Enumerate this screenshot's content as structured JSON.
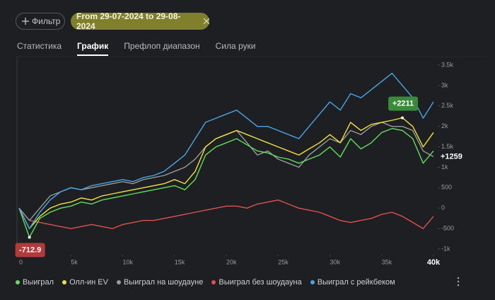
{
  "filter_button": "Фильтр",
  "date_range": "From 29-07-2024 to 29-08-2024",
  "tabs": [
    "Статистика",
    "График",
    "Префлоп диапазон",
    "Сила руки"
  ],
  "active_tab": 1,
  "chart_data": {
    "type": "line",
    "x": [
      0,
      1000,
      2000,
      3000,
      4000,
      5000,
      6000,
      7000,
      8000,
      9000,
      10000,
      11000,
      12000,
      13000,
      14000,
      15000,
      16000,
      17000,
      18000,
      19000,
      20000,
      21000,
      22000,
      23000,
      24000,
      25000,
      26000,
      27000,
      28000,
      29000,
      30000,
      31000,
      32000,
      33000,
      34000,
      35000,
      36000,
      37000,
      38000,
      39000,
      40000
    ],
    "series": [
      {
        "name": "Выиграл",
        "color": "#5fe05a",
        "values": [
          0,
          -712.9,
          -250,
          -100,
          0,
          50,
          150,
          100,
          200,
          250,
          300,
          350,
          400,
          450,
          500,
          550,
          450,
          700,
          1300,
          1500,
          1600,
          1700,
          1550,
          1400,
          1350,
          1250,
          1200,
          1100,
          1200,
          1300,
          1500,
          1250,
          1700,
          1450,
          1600,
          1850,
          1950,
          1900,
          1700,
          1100,
          1400
        ]
      },
      {
        "name": "Олл-ин EV",
        "color": "#f0e23c",
        "values": [
          0,
          -500,
          -200,
          0,
          100,
          150,
          250,
          200,
          300,
          350,
          400,
          450,
          500,
          550,
          600,
          700,
          600,
          900,
          1500,
          1700,
          1800,
          1900,
          1800,
          1700,
          1600,
          1500,
          1400,
          1300,
          1450,
          1600,
          1800,
          1600,
          2100,
          1900,
          2050,
          2100,
          2150,
          2211,
          2000,
          1500,
          1850
        ]
      },
      {
        "name": "Выиграл на шоудауне",
        "color": "#9a9a9a",
        "values": [
          0,
          -300,
          0,
          300,
          400,
          500,
          450,
          500,
          550,
          600,
          650,
          600,
          700,
          750,
          800,
          900,
          1000,
          1200,
          1500,
          1700,
          1800,
          1900,
          1600,
          1300,
          1400,
          1200,
          1100,
          1000,
          1300,
          1500,
          1700,
          1600,
          1900,
          1800,
          2000,
          2100,
          2000,
          2000,
          1900,
          1400,
          1259
        ]
      },
      {
        "name": "Выиграл без шоудауна",
        "color": "#e0504e",
        "values": [
          0,
          -300,
          -350,
          -400,
          -450,
          -500,
          -450,
          -400,
          -450,
          -500,
          -400,
          -350,
          -300,
          -300,
          -250,
          -200,
          -150,
          -100,
          -50,
          0,
          50,
          50,
          0,
          100,
          150,
          200,
          100,
          0,
          -50,
          -100,
          -200,
          -300,
          -350,
          -300,
          -250,
          -150,
          -100,
          -200,
          -350,
          -500,
          -200
        ]
      },
      {
        "name": "Выиграл с рейкбеком",
        "color": "#48a6e6",
        "values": [
          0,
          -500,
          -100,
          200,
          400,
          500,
          450,
          550,
          600,
          650,
          700,
          650,
          750,
          800,
          900,
          1100,
          1300,
          1700,
          2100,
          2200,
          2300,
          2400,
          2200,
          2000,
          2000,
          1900,
          1800,
          1700,
          2000,
          2300,
          2600,
          2400,
          2800,
          2700,
          2900,
          3100,
          3300,
          3000,
          2700,
          2200,
          2600
        ]
      }
    ],
    "xlim": [
      0,
      40000
    ],
    "xticks": [
      0,
      {
        "value": 5000,
        "label": "5k"
      },
      {
        "value": 10000,
        "label": "10k"
      },
      {
        "value": 15000,
        "label": "15k"
      },
      {
        "value": 20000,
        "label": "20k"
      },
      {
        "value": 25000,
        "label": "25k"
      },
      {
        "value": 30000,
        "label": "30k"
      },
      {
        "value": 35000,
        "label": "35k"
      },
      {
        "value": 40000,
        "label": "40k"
      }
    ],
    "ylim": [
      -1000,
      3500
    ],
    "yticks": [
      {
        "value": -1000,
        "label": "-1k"
      },
      -500,
      0,
      500,
      {
        "value": 1000,
        "label": "1k"
      },
      {
        "value": 1500,
        "label": "1.5k"
      },
      {
        "value": 2000,
        "label": "2k"
      },
      {
        "value": 2500,
        "label": "2.5k"
      },
      {
        "value": 3000,
        "label": "3k"
      },
      {
        "value": 3500,
        "label": "3.5k"
      }
    ],
    "annotations": [
      {
        "label": "-712.9",
        "x": 1000,
        "value": -712.9,
        "color": "#b23a3a"
      },
      {
        "label": "+2211",
        "x": 37000,
        "value": 2211,
        "color": "#3a8a3a"
      },
      {
        "label": "+1259",
        "x": 40000,
        "value": 1259
      }
    ]
  }
}
